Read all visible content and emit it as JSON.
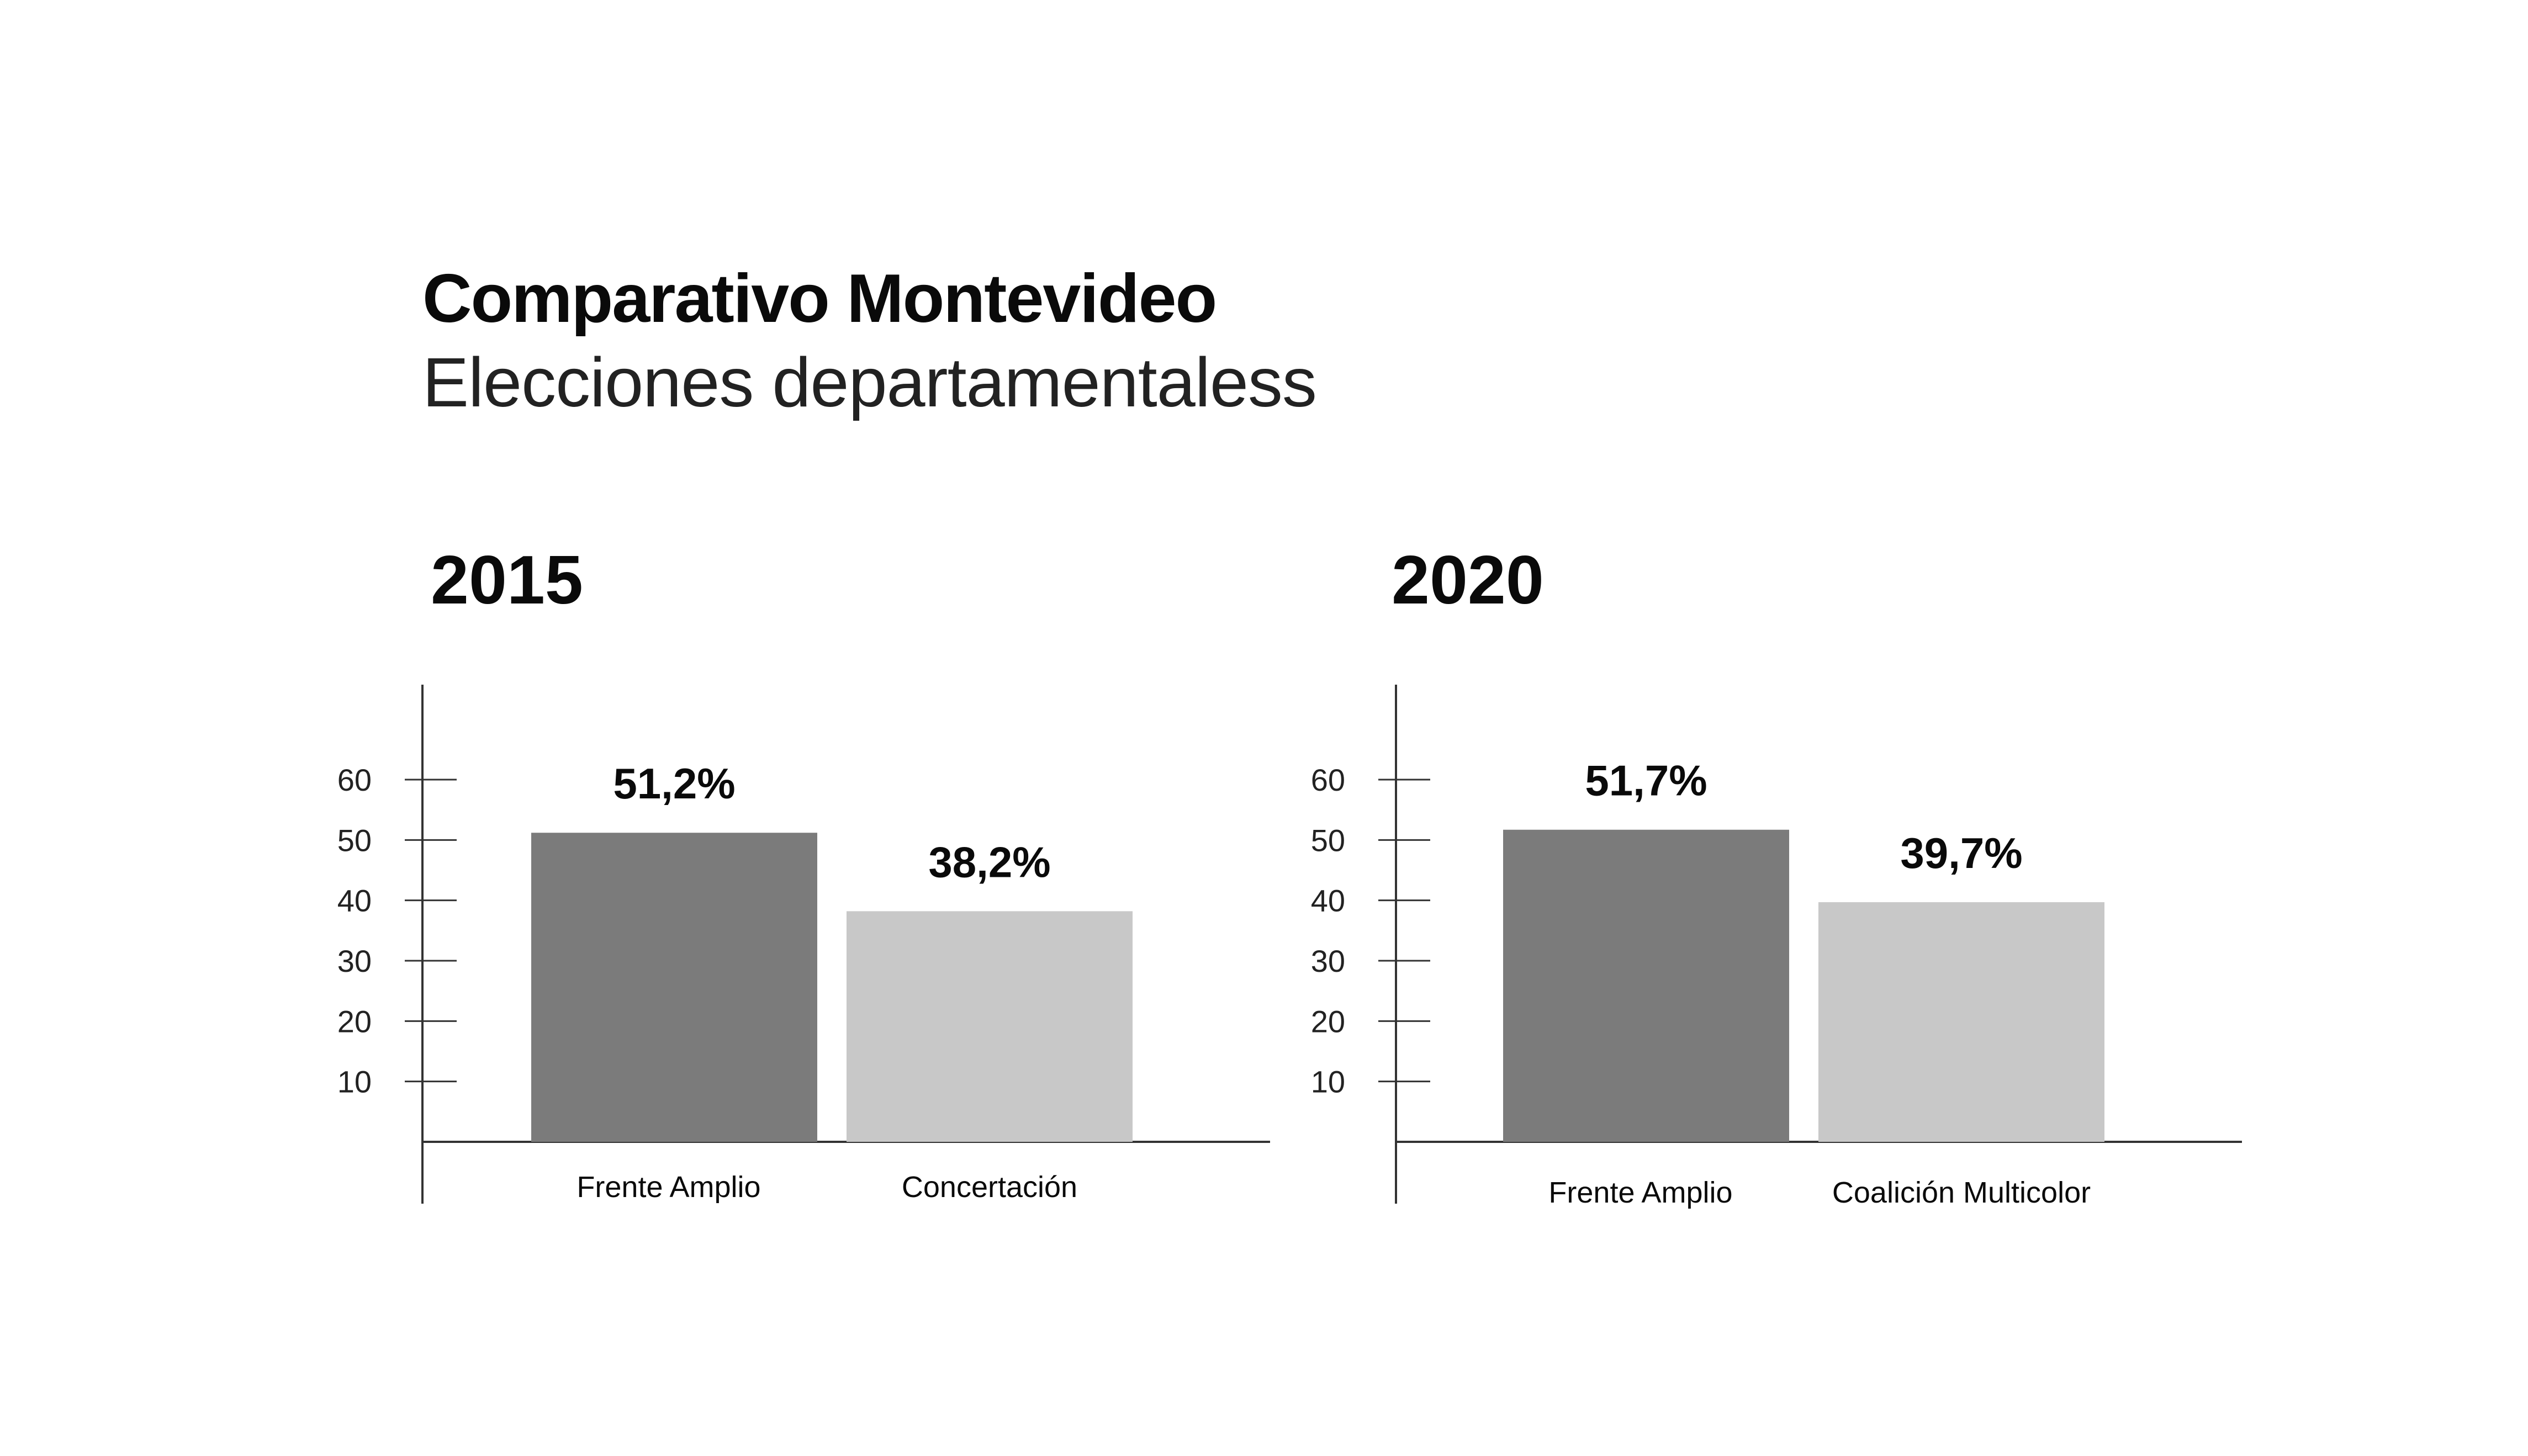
{
  "header": {
    "title": "Comparativo Montevideo",
    "subtitle": "Elecciones departamentaless"
  },
  "colors": {
    "primary_bar": "#7b7b7b",
    "secondary_bar": "#c8c8c8",
    "axis": "#333333"
  },
  "chart_data": [
    {
      "type": "bar",
      "title": "2015",
      "categories": [
        "Frente Amplio",
        "Concertación"
      ],
      "values": [
        51.2,
        38.2
      ],
      "value_labels": [
        "51,2%",
        "38,2%"
      ],
      "colors": [
        "#7b7b7b",
        "#c8c8c8"
      ],
      "yticks": [
        10,
        20,
        30,
        40,
        50,
        60
      ],
      "ylim": [
        0,
        75
      ],
      "grid": false
    },
    {
      "type": "bar",
      "title": "2020",
      "categories": [
        "Frente Amplio",
        "Coalición Multicolor"
      ],
      "values": [
        51.7,
        39.7
      ],
      "value_labels": [
        "51,7%",
        "39,7%"
      ],
      "colors": [
        "#7b7b7b",
        "#c8c8c8"
      ],
      "yticks": [
        10,
        20,
        30,
        40,
        50,
        60
      ],
      "ylim": [
        0,
        75
      ],
      "grid": false
    }
  ]
}
